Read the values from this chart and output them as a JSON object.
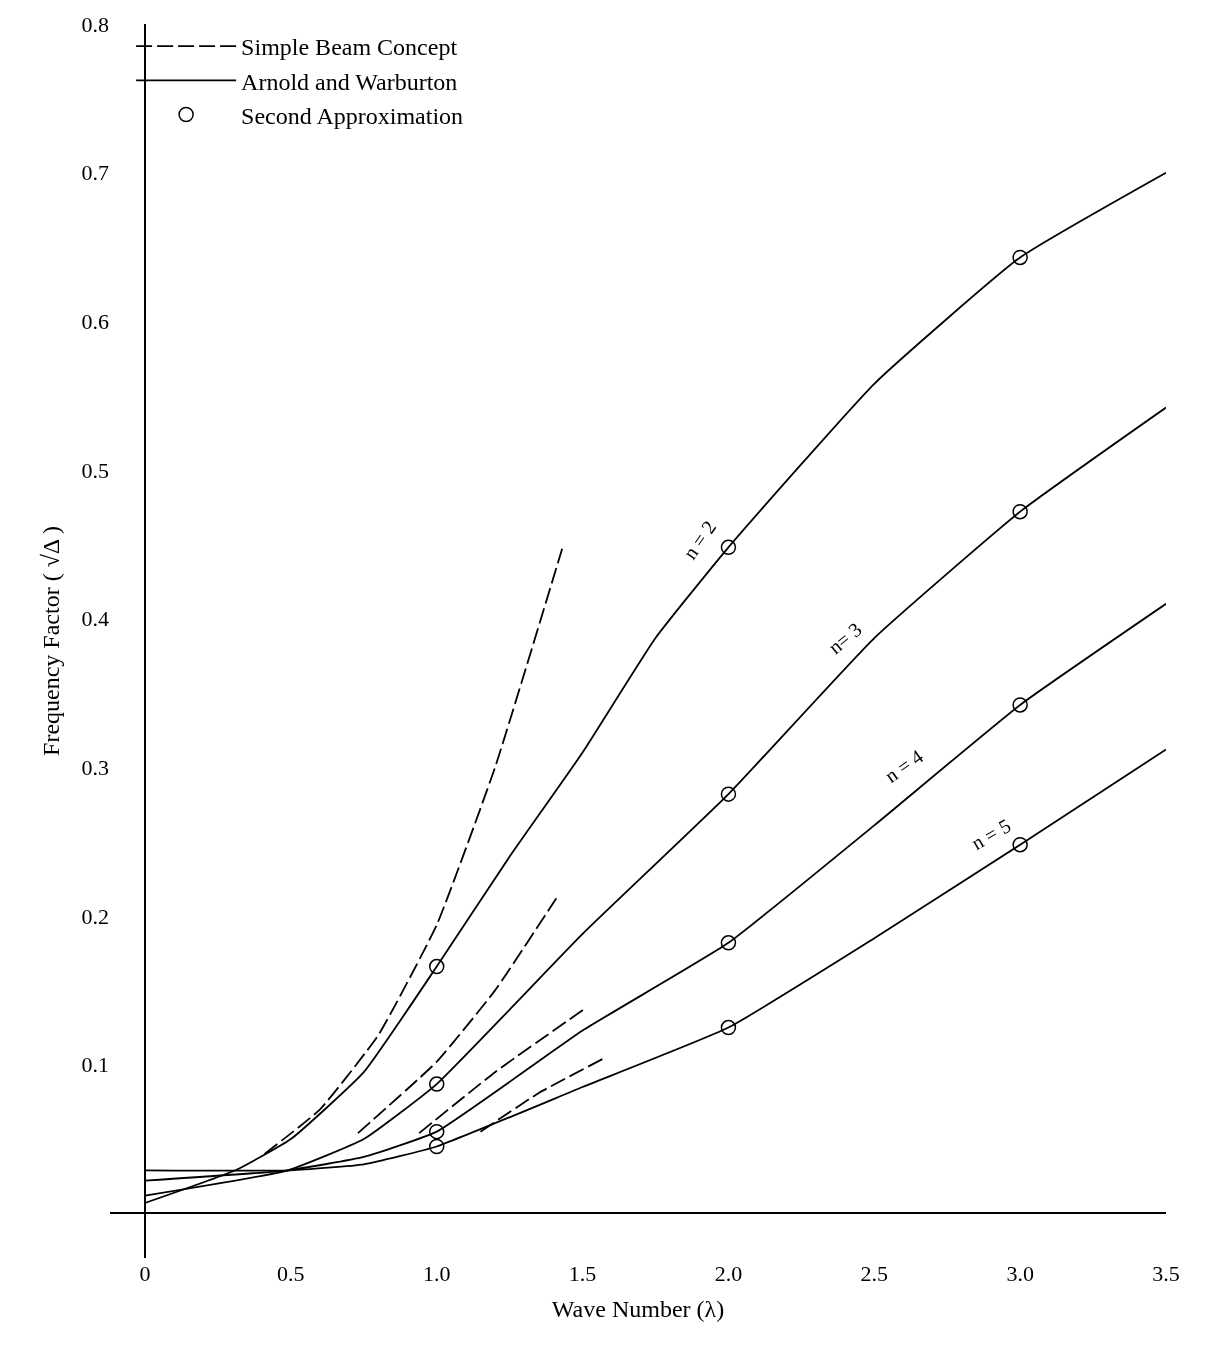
{
  "chart_data": {
    "type": "line",
    "xlabel": "Wave Number (λ)",
    "ylabel": "Frequency Factor ( √Δ )",
    "xlim": [
      -0.12,
      3.5
    ],
    "ylim": [
      -0.03,
      0.8
    ],
    "xticks": [
      0,
      0.5,
      {
        "value": 1,
        "label": "1.0"
      },
      1.5,
      {
        "value": 2,
        "label": "2.0"
      },
      2.5,
      {
        "value": 3,
        "label": "3.0"
      },
      3.5
    ],
    "yticks": [
      0.1,
      0.2,
      0.3,
      0.4,
      0.5,
      0.6,
      0.7,
      0.8
    ],
    "grid": false,
    "legend": "top left",
    "series": [
      {
        "name": "Simple Beam Concept",
        "color": "#000000",
        "line_style": "dashed",
        "marker": "none",
        "x": [
          0.41,
          0.6,
          0.8,
          1.0,
          1.2,
          1.43
        ],
        "values": [
          0.04,
          0.07,
          0.12,
          0.194,
          0.3,
          0.447
        ]
      },
      {
        "color": "#000000",
        "line_style": "dashed",
        "marker": "none",
        "x": [
          0.73,
          1.0,
          1.2,
          1.41
        ],
        "values": [
          0.054,
          0.102,
          0.15,
          0.212
        ]
      },
      {
        "color": "#000000",
        "line_style": "dashed",
        "marker": "none",
        "x": [
          0.94,
          1.2,
          1.51
        ],
        "values": [
          0.054,
          0.095,
          0.138
        ]
      },
      {
        "color": "#000000",
        "line_style": "dashed",
        "marker": "none",
        "x": [
          1.15,
          1.35,
          1.57
        ],
        "values": [
          0.055,
          0.081,
          0.104
        ]
      },
      {
        "name": "Arnold and Warburton",
        "color": "#000000",
        "line_style": "solid",
        "marker": "none",
        "x": [
          0,
          0.31,
          0.5,
          0.75,
          1.0,
          1.25,
          1.5,
          1.75,
          2.0,
          2.5,
          3.0,
          3.5
        ],
        "values": [
          0.007,
          0.029,
          0.05,
          0.095,
          0.166,
          0.24,
          0.31,
          0.387,
          0.448,
          0.558,
          0.643,
          0.7
        ]
      },
      {
        "color": "#000000",
        "line_style": "solid",
        "marker": "none",
        "x": [
          0,
          0.49,
          0.75,
          1.0,
          1.5,
          2.0,
          2.5,
          3.0,
          3.5
        ],
        "values": [
          0.012,
          0.029,
          0.05,
          0.087,
          0.188,
          0.282,
          0.387,
          0.472,
          0.542
        ]
      },
      {
        "color": "#000000",
        "line_style": "solid",
        "marker": "none",
        "x": [
          0,
          0.49,
          0.75,
          1.0,
          1.5,
          2.0,
          2.5,
          3.0,
          3.5
        ],
        "values": [
          0.022,
          0.029,
          0.038,
          0.055,
          0.123,
          0.182,
          0.261,
          0.342,
          0.41
        ]
      },
      {
        "color": "#000000",
        "line_style": "solid",
        "marker": "none",
        "x": [
          0,
          0.5,
          0.75,
          1.0,
          1.5,
          2.0,
          2.5,
          3.0,
          3.5
        ],
        "values": [
          0.029,
          0.029,
          0.033,
          0.045,
          0.085,
          0.125,
          0.185,
          0.248,
          0.312
        ]
      },
      {
        "name": "Second Approximation",
        "type": "scatter",
        "color": "#000000",
        "marker": "circle",
        "x": [
          1,
          1,
          1,
          1,
          2,
          2,
          2,
          2,
          3,
          3,
          3,
          3
        ],
        "values": [
          0.166,
          0.087,
          0.055,
          0.045,
          0.448,
          0.282,
          0.182,
          0.125,
          0.643,
          0.472,
          0.342,
          0.248
        ]
      }
    ],
    "annotations": [
      {
        "text": "n = 2",
        "x": 1.9,
        "y": 0.43
      },
      {
        "text": "n= 3",
        "x": 2.4,
        "y": 0.366
      },
      {
        "text": "n = 4",
        "x": 2.6,
        "y": 0.28
      },
      {
        "text": "n = 5",
        "x": 2.9,
        "y": 0.235
      }
    ]
  }
}
